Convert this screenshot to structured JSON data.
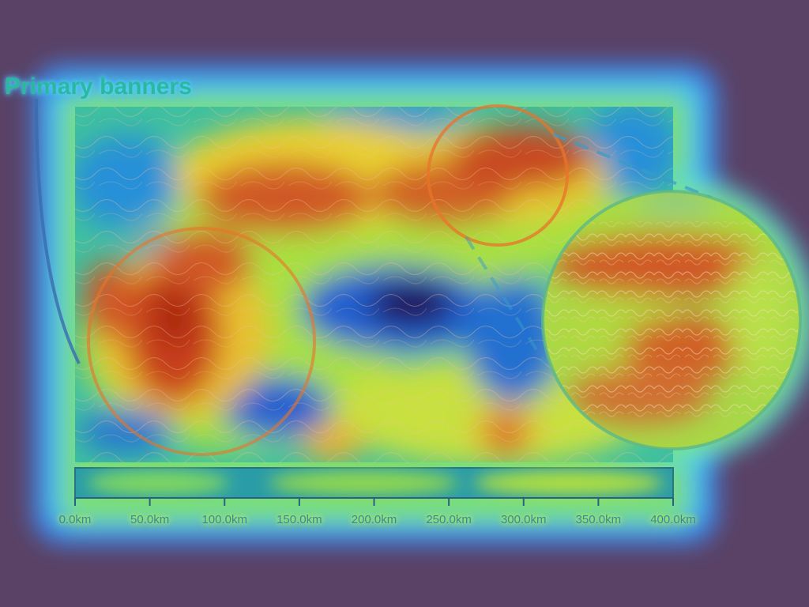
{
  "map": {
    "title": "Primary banners",
    "scale_bar": {
      "unit": "km",
      "ticks": [
        "0.0km",
        "50.0km",
        "100.0km",
        "150.0km",
        "200.0km",
        "250.0km",
        "300.0km",
        "350.0km",
        "400.0km"
      ]
    },
    "colors": {
      "background": "#5a4266",
      "heat_high": "#c8401c",
      "heat_mid": "#e8e030",
      "heat_low": "#1a6fd0",
      "heat_min": "#221048",
      "callout_ring": "#e8742a"
    }
  }
}
